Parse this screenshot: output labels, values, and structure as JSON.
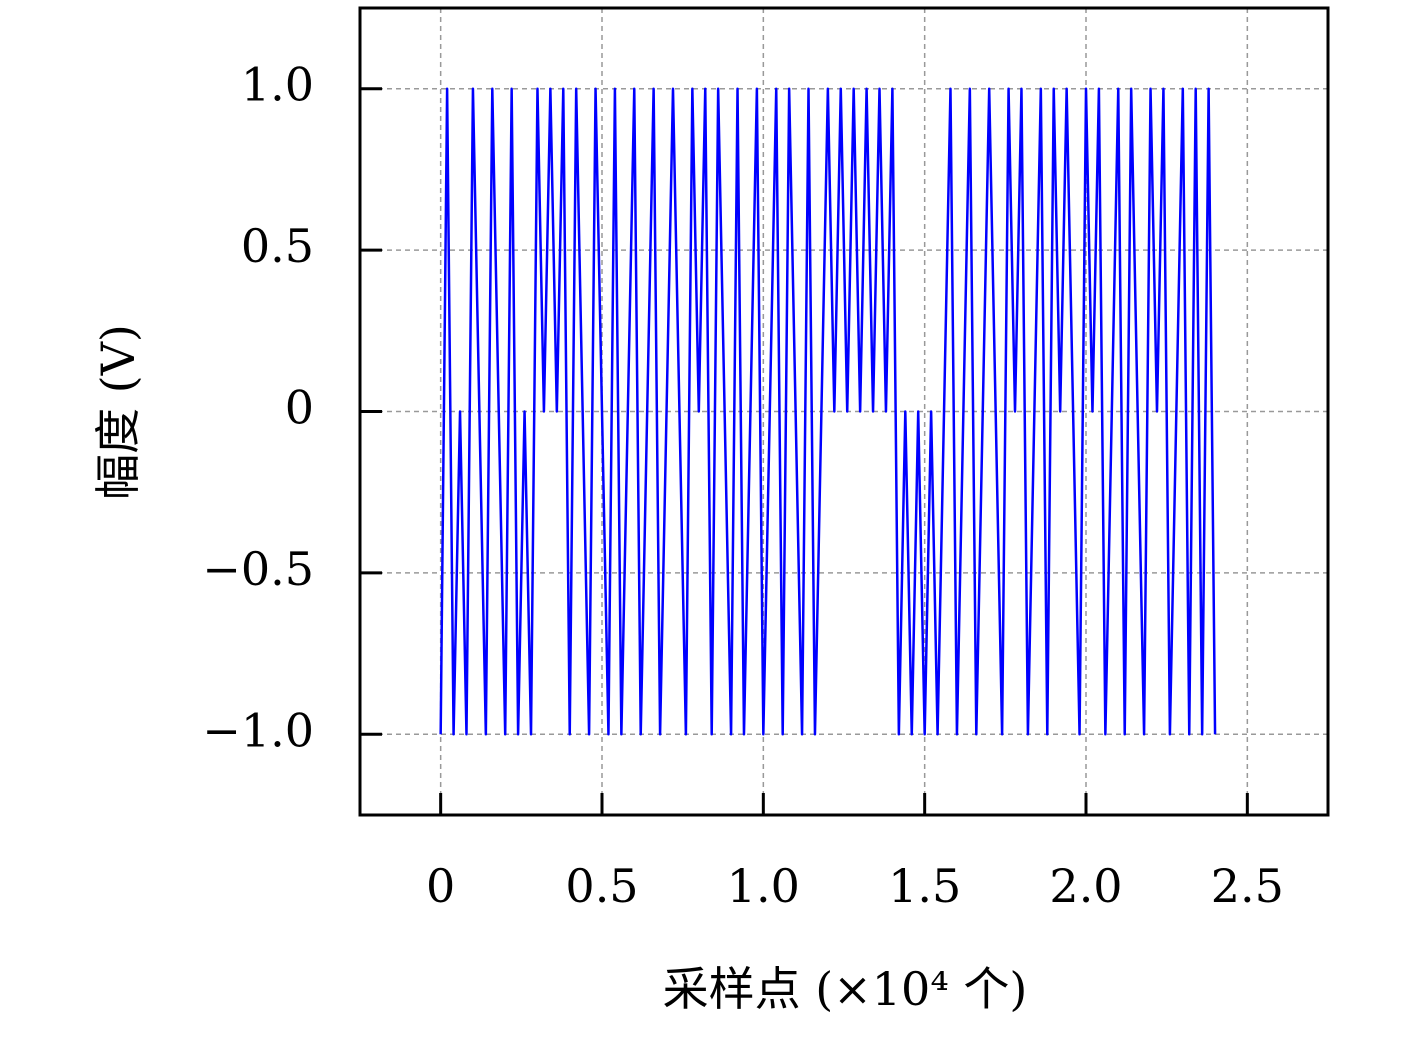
{
  "chart_data": {
    "type": "line",
    "ylabel": "幅度 (V)",
    "xlabel": "采样点 (×10⁴ 个)",
    "color": "#0000ff",
    "grid": true,
    "xlim": [
      -0.25,
      2.75
    ],
    "ylim": [
      -1.25,
      1.25
    ],
    "xticks": [
      0,
      0.5,
      {
        "value": 1,
        "label": "1.0"
      },
      1.5,
      {
        "value": 2,
        "label": "2.0"
      },
      2.5
    ],
    "yticks": [
      {
        "value": -1,
        "label": "−1.0"
      },
      {
        "value": -0.5,
        "label": "−0.5"
      },
      0,
      0.5,
      {
        "value": 1,
        "label": "1.0"
      }
    ],
    "x": [
      0,
      0.02,
      0.04,
      0.06,
      0.08,
      0.1,
      0.12,
      0.14,
      0.16,
      0.18,
      0.2,
      0.22,
      0.24,
      0.26,
      0.28,
      0.3,
      0.32,
      0.34,
      0.36,
      0.38,
      0.4,
      0.42,
      0.44,
      0.46,
      0.48,
      0.5,
      0.52,
      0.54,
      0.56,
      0.58,
      0.6,
      0.62,
      0.64,
      0.66,
      0.68,
      0.7,
      0.72,
      0.74,
      0.76,
      0.78,
      0.8,
      0.82,
      0.84,
      0.86,
      0.88,
      0.9,
      0.92,
      0.94,
      0.96,
      0.98,
      1,
      1.02,
      1.04,
      1.06,
      1.08,
      1.1,
      1.12,
      1.14,
      1.16,
      1.18,
      1.2,
      1.22,
      1.24,
      1.26,
      1.28,
      1.3,
      1.32,
      1.34,
      1.36,
      1.38,
      1.4,
      1.42,
      1.44,
      1.46,
      1.48,
      1.5,
      1.52,
      1.54,
      1.56,
      1.58,
      1.6,
      1.62,
      1.64,
      1.66,
      1.68,
      1.7,
      1.72,
      1.74,
      1.76,
      1.78,
      1.8,
      1.82,
      1.84,
      1.86,
      1.88,
      1.9,
      1.92,
      1.94,
      1.96,
      1.98,
      2,
      2.02,
      2.04,
      2.06,
      2.08,
      2.1,
      2.12,
      2.14,
      2.16,
      2.18,
      2.2,
      2.22,
      2.24,
      2.26,
      2.28,
      2.3,
      2.32,
      2.34,
      2.36,
      2.38,
      2.4
    ],
    "values": [
      -1,
      1,
      -1,
      0,
      -1,
      1,
      0,
      -1,
      1,
      0,
      -1,
      1,
      -1,
      0,
      -1,
      1,
      0,
      1,
      0,
      1,
      -1,
      1,
      0,
      -1,
      1,
      0,
      -1,
      1,
      -1,
      0,
      1,
      -1,
      0,
      1,
      -1,
      0,
      1,
      0,
      -1,
      1,
      0,
      1,
      -1,
      1,
      0,
      -1,
      1,
      -1,
      0,
      1,
      -1,
      0,
      1,
      -1,
      1,
      0,
      -1,
      1,
      -1,
      0,
      1,
      0,
      1,
      0,
      1,
      0,
      1,
      0,
      1,
      0,
      1,
      -1,
      0,
      -1,
      0,
      -1,
      0,
      -1,
      0,
      1,
      -1,
      0,
      1,
      -1,
      0,
      1,
      0,
      -1,
      1,
      0,
      1,
      -1,
      0,
      1,
      -1,
      1,
      0,
      1,
      0,
      -1,
      1,
      0,
      1,
      -1,
      0,
      1,
      -1,
      1,
      0,
      -1,
      1,
      0,
      1,
      -1,
      0,
      1,
      -1,
      1,
      -1,
      1,
      -1
    ]
  }
}
